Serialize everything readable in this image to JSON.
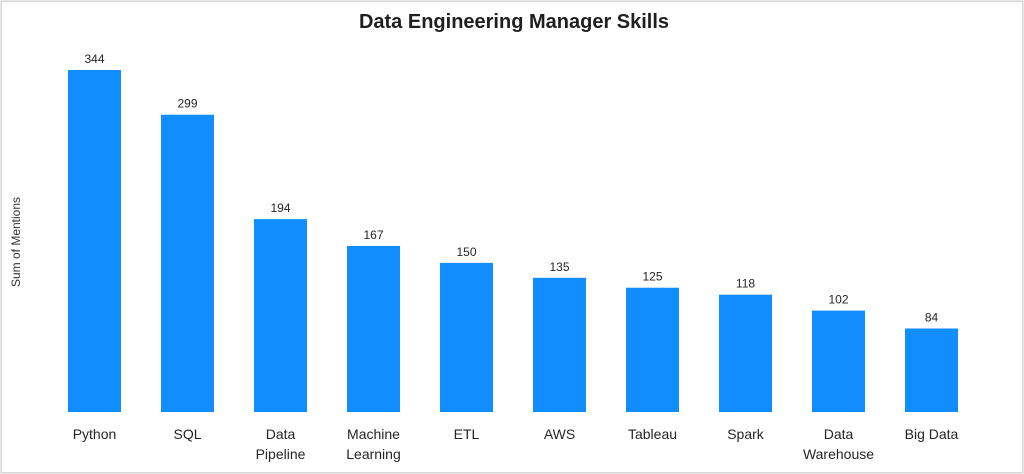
{
  "chart_data": {
    "type": "bar",
    "title": "Data Engineering Manager Skills",
    "xlabel": "",
    "ylabel": "Sum of Mentions",
    "categories": [
      "Python",
      "SQL",
      "Data Pipeline",
      "Machine Learning",
      "ETL",
      "AWS",
      "Tableau",
      "Spark",
      "Data Warehouse",
      "Big Data"
    ],
    "tick_lines": [
      [
        "Python"
      ],
      [
        "SQL"
      ],
      [
        "Data",
        "Pipeline"
      ],
      [
        "Machine",
        "Learning"
      ],
      [
        "ETL"
      ],
      [
        "AWS"
      ],
      [
        "Tableau"
      ],
      [
        "Spark"
      ],
      [
        "Data",
        "Warehouse"
      ],
      [
        "Big Data"
      ]
    ],
    "values": [
      344,
      299,
      194,
      167,
      150,
      135,
      125,
      118,
      102,
      84
    ],
    "ylim": [
      0,
      344
    ],
    "grid": false,
    "legend": "none",
    "bar_color": "#118dff"
  }
}
